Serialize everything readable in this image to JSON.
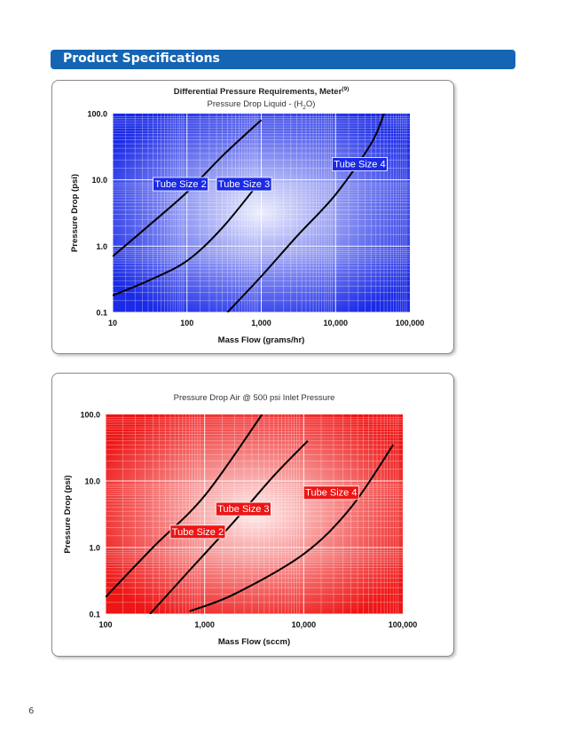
{
  "header": {
    "title": "Product Specifications"
  },
  "page": {
    "number": "6"
  },
  "chart_data": [
    {
      "type": "line",
      "title": "Differential Pressure Requirements, Meter",
      "title_superscript": "(9)",
      "subtitle_pre": "Pressure Drop Liquid - (H",
      "subtitle_sub": "2",
      "subtitle_post": "O)",
      "xlabel": "Mass Flow (grams/hr)",
      "ylabel": "Pressure Drop (psi)",
      "x_scale": "log",
      "y_scale": "log",
      "xlim": [
        10,
        100000
      ],
      "ylim": [
        0.1,
        100
      ],
      "x_ticks": [
        10,
        100,
        1000,
        10000,
        100000
      ],
      "x_tick_labels": [
        "10",
        "100",
        "1,000",
        "10,000",
        "100,000"
      ],
      "y_ticks": [
        0.1,
        1,
        10,
        100
      ],
      "y_tick_labels": [
        "0.1",
        "1.0",
        "10.0",
        "100.0"
      ],
      "grid": true,
      "background": "#1a2ae6",
      "label_bg": "#1a2ae6",
      "series": [
        {
          "name": "Tube Size 2",
          "x": [
            10,
            30,
            100,
            300,
            1000
          ],
          "y": [
            0.7,
            2.0,
            6.5,
            23,
            80
          ],
          "label_at": [
            35,
            7.5
          ]
        },
        {
          "name": "Tube Size 3",
          "x": [
            10,
            30,
            100,
            300,
            1000
          ],
          "y": [
            0.18,
            0.3,
            0.6,
            1.9,
            10
          ],
          "label_at": [
            250,
            7.5
          ]
        },
        {
          "name": "Tube Size 4",
          "x": [
            350,
            1000,
            3000,
            10000,
            30000,
            45000
          ],
          "y": [
            0.1,
            0.35,
            1.4,
            6.0,
            35,
            100
          ],
          "label_at": [
            9000,
            15
          ]
        }
      ]
    },
    {
      "type": "line",
      "title": "Pressure Drop Air @ 500 psi Inlet Pressure",
      "xlabel": "Mass Flow (sccm)",
      "ylabel": "Pressure Drop (psi)",
      "x_scale": "log",
      "y_scale": "log",
      "xlim": [
        100,
        100000
      ],
      "ylim": [
        0.1,
        100
      ],
      "x_ticks": [
        100,
        1000,
        10000,
        100000
      ],
      "x_tick_labels": [
        "100",
        "1,000",
        "10,000",
        "100,000"
      ],
      "y_ticks": [
        0.1,
        1,
        10,
        100
      ],
      "y_tick_labels": [
        "0.1",
        "1.0",
        "10.0",
        "100.0"
      ],
      "grid": true,
      "background": "#ee1515",
      "label_bg": "#ee1515",
      "series": [
        {
          "name": "Tube Size 2",
          "x": [
            100,
            300,
            1000,
            3800
          ],
          "y": [
            0.18,
            1.0,
            6.0,
            100
          ],
          "label_at": [
            450,
            1.5
          ]
        },
        {
          "name": "Tube Size 3",
          "x": [
            280,
            700,
            2000,
            5000,
            11000
          ],
          "y": [
            0.1,
            0.45,
            2.5,
            12,
            40
          ],
          "label_at": [
            1300,
            3.3
          ]
        },
        {
          "name": "Tube Size 4",
          "x": [
            700,
            2000,
            10000,
            30000,
            80000
          ],
          "y": [
            0.11,
            0.2,
            0.8,
            4,
            35
          ],
          "label_at": [
            10000,
            5.8
          ]
        }
      ]
    }
  ]
}
